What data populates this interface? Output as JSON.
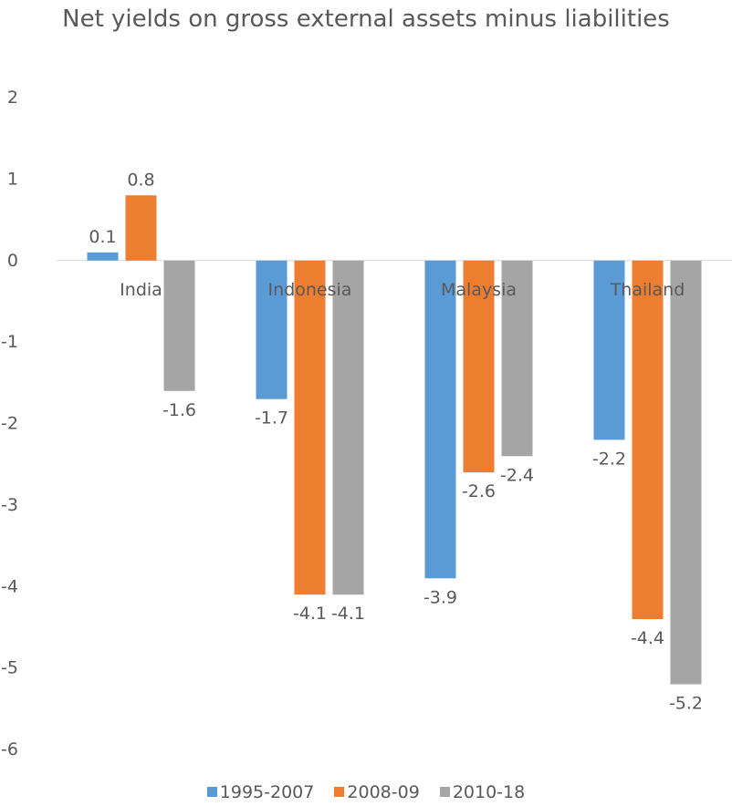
{
  "chart_data": {
    "type": "bar",
    "title": "Net yields on gross external assets minus liabilities",
    "categories": [
      "India",
      "Indonesia",
      "Malaysia",
      "Thailand"
    ],
    "series": [
      {
        "name": "1995-2007",
        "color": "#5B9BD5",
        "values": [
          0.1,
          -1.7,
          -3.9,
          -2.2
        ]
      },
      {
        "name": "2008-09",
        "color": "#ED7D31",
        "values": [
          0.8,
          -4.1,
          -2.6,
          -4.4
        ]
      },
      {
        "name": "2010-18",
        "color": "#A5A5A5",
        "values": [
          -1.6,
          -4.1,
          -2.4,
          -5.2
        ]
      }
    ],
    "value_labels": [
      [
        "0.1",
        "0.8",
        "-1.6"
      ],
      [
        "-1.7",
        "-4.1",
        "-4.1"
      ],
      [
        "-3.9",
        "-2.6",
        "-2.4"
      ],
      [
        "-2.2",
        "-4.4",
        "-5.2"
      ]
    ],
    "y_ticks": [
      "2",
      "1",
      "0",
      "-1",
      "-2",
      "-3",
      "-4",
      "-5",
      "-6"
    ],
    "ylim": [
      -6,
      2
    ],
    "xlabel": "",
    "ylabel": "",
    "grid": false,
    "legend_position": "bottom"
  }
}
